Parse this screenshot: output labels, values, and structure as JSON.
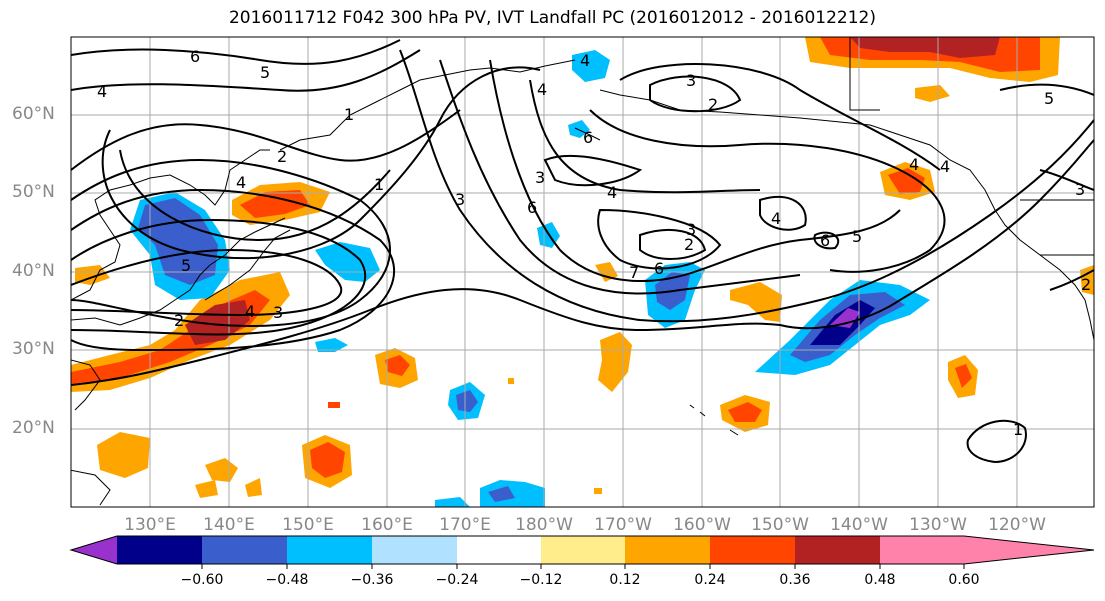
{
  "title": "2016011712 F042 300 hPa PV, IVT Landfall PC (2016012012 - 2016012212)",
  "lat_labels": [
    "60°N",
    "50°N",
    "40°N",
    "30°N",
    "20°N"
  ],
  "lon_labels": [
    "130°E",
    "140°E",
    "150°E",
    "160°E",
    "170°E",
    "180°W",
    "170°W",
    "160°W",
    "150°W",
    "140°W",
    "130°W",
    "120°W"
  ],
  "colorbar": {
    "ticks": [
      "−0.60",
      "−0.48",
      "−0.36",
      "−0.24",
      "−0.12",
      "0.12",
      "0.24",
      "0.36",
      "0.48",
      "0.60"
    ],
    "colors": [
      "#9932cc",
      "#00008b",
      "#3a5fcd",
      "#00bfff",
      "#b0e2ff",
      "#ffffff",
      "#ffec8b",
      "#ffa500",
      "#ff4500",
      "#b22222",
      "#ff82ab"
    ]
  },
  "contour_labels": [
    "6",
    "5",
    "4",
    "1",
    "2",
    "1",
    "3",
    "5",
    "4",
    "3",
    "2",
    "4",
    "3",
    "6",
    "2",
    "3",
    "4",
    "6",
    "7",
    "6",
    "3",
    "2",
    "4",
    "5",
    "4",
    "5",
    "6",
    "4",
    "3",
    "2",
    "4",
    "4",
    "1"
  ]
}
